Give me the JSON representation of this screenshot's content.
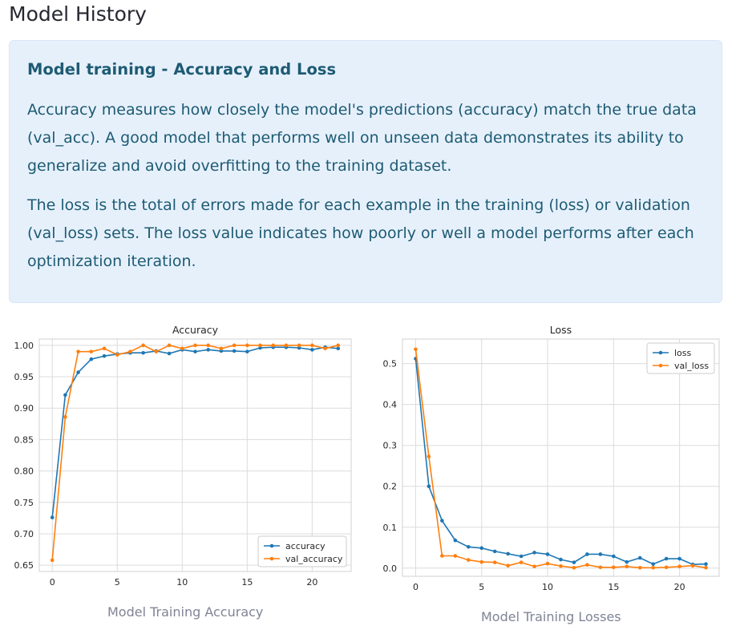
{
  "page": {
    "title": "Model History"
  },
  "info": {
    "heading": "Model training - Accuracy and Loss",
    "paragraph1": "Accuracy measures how closely the model's predictions (accuracy) match the true data (val_acc). A good model that performs well on unseen data demonstrates its ability to generalize and avoid overfitting to the training dataset.",
    "paragraph2": "The loss is the total of errors made for each example in the training (loss) or validation (val_loss) sets. The loss value indicates how poorly or well a model performs after each optimization iteration."
  },
  "captions": {
    "accuracy": "Model Training Accuracy",
    "loss": "Model Training Losses"
  },
  "chart_data": [
    {
      "type": "line",
      "title": "Accuracy",
      "xlabel": "",
      "ylabel": "",
      "xlim": [
        -1,
        23
      ],
      "ylim": [
        0.64,
        1.01
      ],
      "xticks": [
        0,
        5,
        10,
        15,
        20
      ],
      "yticks": [
        "0.65",
        "0.70",
        "0.75",
        "0.80",
        "0.85",
        "0.90",
        "0.95",
        "1.00"
      ],
      "grid": true,
      "legend_position": "bottom-right",
      "x": [
        0,
        1,
        2,
        3,
        4,
        5,
        6,
        7,
        8,
        9,
        10,
        11,
        12,
        13,
        14,
        15,
        16,
        17,
        18,
        19,
        20,
        21,
        22
      ],
      "series": [
        {
          "name": "accuracy",
          "color": "#1f77b4",
          "values": [
            0.726,
            0.921,
            0.957,
            0.978,
            0.983,
            0.986,
            0.988,
            0.988,
            0.991,
            0.987,
            0.993,
            0.99,
            0.993,
            0.991,
            0.991,
            0.99,
            0.996,
            0.997,
            0.997,
            0.996,
            0.993,
            0.997,
            0.995
          ]
        },
        {
          "name": "val_accuracy",
          "color": "#ff7f0e",
          "values": [
            0.658,
            0.886,
            0.99,
            0.99,
            0.995,
            0.985,
            0.99,
            1.0,
            0.99,
            1.0,
            0.995,
            1.0,
            1.0,
            0.995,
            1.0,
            1.0,
            1.0,
            1.0,
            1.0,
            1.0,
            1.0,
            0.995,
            1.0
          ]
        }
      ]
    },
    {
      "type": "line",
      "title": "Loss",
      "xlabel": "",
      "ylabel": "",
      "xlim": [
        -1,
        23
      ],
      "ylim": [
        -0.02,
        0.56
      ],
      "xticks": [
        0,
        5,
        10,
        15,
        20
      ],
      "yticks": [
        "0.0",
        "0.1",
        "0.2",
        "0.3",
        "0.4",
        "0.5"
      ],
      "grid": true,
      "legend_position": "top-right",
      "x": [
        0,
        1,
        2,
        3,
        4,
        5,
        6,
        7,
        8,
        9,
        10,
        11,
        12,
        13,
        14,
        15,
        16,
        17,
        18,
        19,
        20,
        21,
        22
      ],
      "series": [
        {
          "name": "loss",
          "color": "#1f77b4",
          "values": [
            0.512,
            0.2,
            0.116,
            0.068,
            0.052,
            0.049,
            0.041,
            0.035,
            0.029,
            0.038,
            0.034,
            0.021,
            0.014,
            0.034,
            0.034,
            0.029,
            0.015,
            0.025,
            0.01,
            0.023,
            0.023,
            0.009,
            0.01
          ]
        },
        {
          "name": "val_loss",
          "color": "#ff7f0e",
          "values": [
            0.535,
            0.273,
            0.03,
            0.03,
            0.02,
            0.015,
            0.014,
            0.006,
            0.014,
            0.004,
            0.011,
            0.005,
            0.001,
            0.008,
            0.002,
            0.002,
            0.004,
            0.001,
            0.001,
            0.002,
            0.004,
            0.006,
            0.001
          ]
        }
      ]
    }
  ]
}
